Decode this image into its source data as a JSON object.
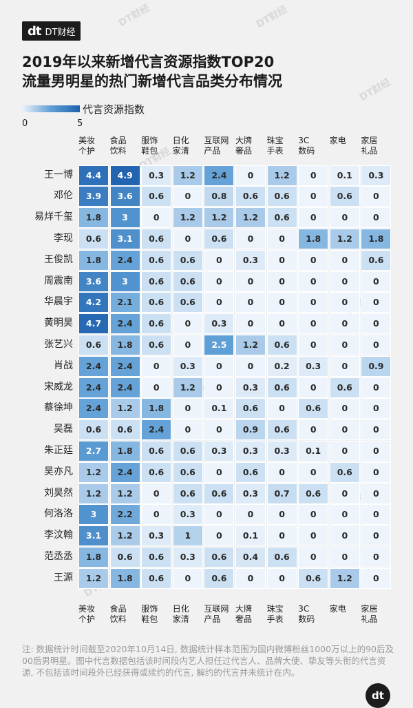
{
  "brand": {
    "mark": "dt",
    "name": "DT财经"
  },
  "title": [
    "2019年以来新增代言资源指数TOP20",
    "流量男明星的热门新增代言品类分布情况"
  ],
  "legend": {
    "label": "代言资源指数",
    "min": "0",
    "max": "5"
  },
  "columns": [
    [
      "美妆",
      "个护"
    ],
    [
      "食品",
      "饮料"
    ],
    [
      "服饰",
      "鞋包"
    ],
    [
      "日化",
      "家清"
    ],
    [
      "互联网",
      "产品"
    ],
    [
      "大牌",
      "奢品"
    ],
    [
      "珠宝",
      "手表"
    ],
    [
      "3C",
      "数码"
    ],
    [
      "家电"
    ],
    [
      "家居",
      "礼品"
    ]
  ],
  "chart_data": {
    "type": "heatmap",
    "title": "2019年以来新增代言资源指数TOP20 流量男明星的热门新增代言品类分布情况",
    "x": [
      "美妆个护",
      "食品饮料",
      "服饰鞋包",
      "日化家清",
      "互联网产品",
      "大牌奢品",
      "珠宝手表",
      "3C数码",
      "家电",
      "家居礼品"
    ],
    "y": [
      "王一博",
      "邓伦",
      "易烊千玺",
      "李现",
      "王俊凯",
      "周震南",
      "华晨宇",
      "黄明昊",
      "张艺兴",
      "肖战",
      "宋威龙",
      "蔡徐坤",
      "吴磊",
      "朱正廷",
      "吴亦凡",
      "刘昊然",
      "何洛洛",
      "李汶翰",
      "范丞丞",
      "王源"
    ],
    "values": [
      [
        "4.4",
        "4.9",
        "0.3",
        "1.2",
        "2.4",
        "0",
        "1.2",
        "0",
        "0.1",
        "0.3"
      ],
      [
        "3.9",
        "3.6",
        "0.6",
        "0",
        "0.8",
        "0.6",
        "0.6",
        "0",
        "0.6",
        "0"
      ],
      [
        "1.8",
        "3",
        "0",
        "1.2",
        "1.2",
        "1.2",
        "0.6",
        "0",
        "0",
        "0"
      ],
      [
        "0.6",
        "3.1",
        "0.6",
        "0",
        "0.6",
        "0",
        "0",
        "1.8",
        "1.2",
        "1.8"
      ],
      [
        "1.8",
        "2.4",
        "0.6",
        "0.6",
        "0",
        "0.3",
        "0",
        "0",
        "0",
        "0.6"
      ],
      [
        "3.6",
        "3",
        "0.6",
        "0.6",
        "0",
        "0",
        "0",
        "0",
        "0",
        "0"
      ],
      [
        "4.2",
        "2.1",
        "0.6",
        "0.6",
        "0",
        "0",
        "0",
        "0",
        "0",
        "0"
      ],
      [
        "4.7",
        "2.4",
        "0.6",
        "0",
        "0.3",
        "0",
        "0",
        "0",
        "0",
        "0"
      ],
      [
        "0.6",
        "1.8",
        "0.6",
        "0",
        "2.5",
        "1.2",
        "0.6",
        "0",
        "0",
        "0"
      ],
      [
        "2.4",
        "2.4",
        "0",
        "0.3",
        "0",
        "0",
        "0.2",
        "0.3",
        "0",
        "0.9"
      ],
      [
        "2.4",
        "2.4",
        "0",
        "1.2",
        "0",
        "0.3",
        "0.6",
        "0",
        "0.6",
        "0"
      ],
      [
        "2.4",
        "1.2",
        "1.8",
        "0",
        "0.1",
        "0.6",
        "0",
        "0.6",
        "0",
        "0"
      ],
      [
        "0.6",
        "0.6",
        "2.4",
        "0",
        "0",
        "0.9",
        "0.6",
        "0",
        "0",
        "0"
      ],
      [
        "2.7",
        "1.8",
        "0.6",
        "0.6",
        "0.3",
        "0.3",
        "0.3",
        "0.1",
        "0",
        "0"
      ],
      [
        "1.2",
        "2.4",
        "0.6",
        "0.6",
        "0",
        "0.6",
        "0",
        "0",
        "0.6",
        "0"
      ],
      [
        "1.2",
        "1.2",
        "0",
        "0.6",
        "0.6",
        "0.3",
        "0.7",
        "0.6",
        "0",
        "0"
      ],
      [
        "3",
        "2.2",
        "0",
        "0.3",
        "0",
        "0",
        "0",
        "0",
        "0",
        "0"
      ],
      [
        "3.1",
        "1.2",
        "0.3",
        "1",
        "0",
        "0.1",
        "0",
        "0",
        "0",
        "0"
      ],
      [
        "1.8",
        "0.6",
        "0.6",
        "0.3",
        "0.6",
        "0.4",
        "0.6",
        "0",
        "0",
        "0"
      ],
      [
        "1.2",
        "1.8",
        "0.6",
        "0",
        "0.6",
        "0",
        "0",
        "0.6",
        "1.2",
        "0"
      ]
    ],
    "color_range": [
      0,
      5
    ],
    "colors": {
      "low": "#eef4fb",
      "mid": "#5e9fd6",
      "high": "#1f62ae"
    }
  },
  "note": "注: 数据统计时间截至2020年10月14日, 数据统计样本范围为国内微博粉丝1000万以上的90后及00后男明星。图中代言数据包括该时间段内艺人担任过代言人、品牌大使、挚友等头衔的代言资源, 不包括该时间段外已经获得或续约的代言, 解约的代言并未统计在内。",
  "footer": {
    "mark": "dt"
  }
}
